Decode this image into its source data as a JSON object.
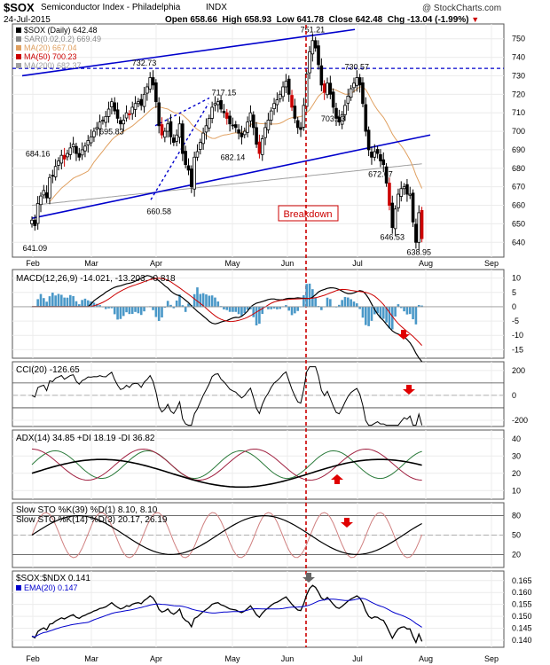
{
  "header": {
    "symbol": "$SOX",
    "name": "Semiconductor Index - Philadelphia",
    "exchange": "INDX",
    "date": "24-Jul-2015",
    "open_label": "Open",
    "open": "658.66",
    "high_label": "High",
    "high": "658.93",
    "low_label": "Low",
    "low": "641.78",
    "close_label": "Close",
    "close": "642.48",
    "chg_label": "Chg",
    "chg": "-13.04 (-1.99%)",
    "watermark": "@ StockCharts.com"
  },
  "colors": {
    "price_up": "#000000",
    "price_down": "#cc0000",
    "ma20": "#e0a060",
    "ma50": "#cc0000",
    "ma200": "#a0a0a0",
    "trendline": "#0000cc",
    "macd_hist": "#4a98c8",
    "cci_fill_pos": "#4c8a4c",
    "cci_fill_neg": "#8a5050",
    "adx": "#000000",
    "plus_di": "#2a7a3a",
    "minus_di": "#a02040",
    "breakdown": "#cc0000"
  },
  "x_axis": {
    "months": [
      "Feb",
      "Mar",
      "Apr",
      "May",
      "Jun",
      "Jul",
      "Aug",
      "Sep"
    ]
  },
  "chart_data": [
    {
      "type": "candlestick",
      "title": "$SOX (Daily) 642.48",
      "legend": [
        {
          "label": "$SOX (Daily) 642.48",
          "color": "#000000"
        },
        {
          "label": "SAR(0.02,0.2) 669.49",
          "color": "#888888"
        },
        {
          "label": "MA(20) 667.04",
          "color": "#e0a060"
        },
        {
          "label": "MA(50) 700.23",
          "color": "#cc0000"
        },
        {
          "label": "MA(200) 682.37",
          "color": "#a0a0a0"
        }
      ],
      "ylim": [
        632,
        758
      ],
      "y_ticks": [
        640,
        650,
        660,
        670,
        680,
        690,
        700,
        710,
        720,
        730,
        740,
        750
      ],
      "closes": [
        652,
        649,
        661,
        665,
        668,
        664,
        675,
        676,
        681,
        684,
        687,
        685,
        688,
        691,
        693,
        688,
        686,
        690,
        692,
        695,
        697,
        700,
        702,
        705,
        706,
        708,
        712,
        716,
        711,
        707,
        704,
        706,
        710,
        709,
        713,
        715,
        716,
        714,
        720,
        724,
        729,
        725,
        716,
        703,
        698,
        700,
        704,
        697,
        694,
        698,
        704,
        688,
        682,
        679,
        670,
        686,
        689,
        694,
        699,
        703,
        707,
        713,
        715,
        716,
        712,
        710,
        707,
        704,
        703,
        702,
        699,
        697,
        700,
        705,
        710,
        702,
        693,
        688,
        696,
        702,
        706,
        711,
        715,
        717,
        720,
        724,
        727,
        720,
        713,
        707,
        702,
        701,
        714,
        731,
        743,
        749,
        745,
        736,
        725,
        721,
        726,
        720,
        713,
        707,
        705,
        709,
        714,
        719,
        723,
        726,
        729,
        725,
        715,
        700,
        690,
        686,
        689,
        688,
        684,
        682,
        672,
        660,
        648,
        658,
        666,
        669,
        670,
        666,
        666,
        651,
        640,
        656,
        642
      ],
      "annotations": [
        {
          "label": "684.16",
          "x": 2,
          "y": 684
        },
        {
          "label": "641.09",
          "x": 1,
          "y": 641
        },
        {
          "label": "695.83",
          "x": 27,
          "y": 696
        },
        {
          "label": "732.73",
          "x": 38,
          "y": 733
        },
        {
          "label": "717.15",
          "x": 65,
          "y": 717
        },
        {
          "label": "660.58",
          "x": 43,
          "y": 661
        },
        {
          "label": "682.14",
          "x": 68,
          "y": 682
        },
        {
          "label": "751.21",
          "x": 95,
          "y": 751
        },
        {
          "label": "730.57",
          "x": 110,
          "y": 731
        },
        {
          "label": "703.13",
          "x": 102,
          "y": 703
        },
        {
          "label": "672.67",
          "x": 118,
          "y": 673
        },
        {
          "label": "646.53",
          "x": 122,
          "y": 647
        },
        {
          "label": "638.95",
          "x": 131,
          "y": 639
        }
      ],
      "callout": "Breakdown"
    },
    {
      "type": "line",
      "title": "MACD(12,26,9) -14.021, -13.203, -0.818",
      "ylim": [
        -18,
        13
      ],
      "y_ticks": [
        -15,
        -10,
        -5,
        0,
        5,
        10
      ],
      "series": [
        "MACD",
        "Signal",
        "Histogram"
      ]
    },
    {
      "type": "line",
      "title": "CCI(20) -126.65",
      "ylim": [
        -250,
        270
      ],
      "y_ticks": [
        -200,
        0,
        200
      ]
    },
    {
      "type": "line",
      "title": "ADX(14) 34.85 +DI 18.19 -DI 36.82",
      "ylim": [
        5,
        45
      ],
      "y_ticks": [
        10,
        20,
        30,
        40
      ]
    },
    {
      "type": "line",
      "title": "Slow STO %K(39) %D(1) 8.10, 8.10",
      "title2": "Slow STO %K(14) %D(3) 20.17, 26.19",
      "ylim": [
        0,
        100
      ],
      "y_ticks": [
        20,
        50,
        80
      ]
    },
    {
      "type": "line",
      "title": "$SOX:$NDX 0.141",
      "legend": [
        {
          "label": "EMA(20) 0.147",
          "color": "#0000cc"
        }
      ],
      "ylim": [
        0.137,
        0.169
      ],
      "y_ticks": [
        0.14,
        0.145,
        0.15,
        0.155,
        0.16,
        0.165
      ],
      "y_tick_labels": [
        "0.140",
        "0.145",
        "0.150",
        "0.155",
        "0.160",
        "0.165"
      ]
    }
  ]
}
